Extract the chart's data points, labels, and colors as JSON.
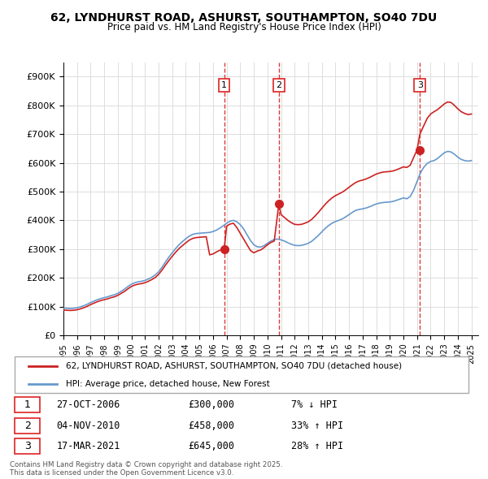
{
  "title": "62, LYNDHURST ROAD, ASHURST, SOUTHAMPTON, SO40 7DU",
  "subtitle": "Price paid vs. HM Land Registry's House Price Index (HPI)",
  "ylabel_ticks": [
    "£0",
    "£100K",
    "£200K",
    "£300K",
    "£400K",
    "£500K",
    "£600K",
    "£700K",
    "£800K",
    "£900K"
  ],
  "ytick_values": [
    0,
    100000,
    200000,
    300000,
    400000,
    500000,
    600000,
    700000,
    800000,
    900000
  ],
  "ylim": [
    0,
    950000
  ],
  "xlim_start": 1995.0,
  "xlim_end": 2025.5,
  "hpi_line_color": "#6699cc",
  "price_line_color": "#cc2222",
  "transaction_line_color": "#dd2222",
  "background_color": "#ffffff",
  "grid_color": "#dddddd",
  "transactions": [
    {
      "num": 1,
      "date": "27-OCT-2006",
      "price": 300000,
      "pct": "7%",
      "dir": "↓",
      "year": 2006.82
    },
    {
      "num": 2,
      "date": "04-NOV-2010",
      "price": 458000,
      "pct": "33%",
      "dir": "↑",
      "year": 2010.84
    },
    {
      "num": 3,
      "date": "17-MAR-2021",
      "price": 645000,
      "pct": "28%",
      "dir": "↑",
      "year": 2021.21
    }
  ],
  "legend_label_red": "62, LYNDHURST ROAD, ASHURST, SOUTHAMPTON, SO40 7DU (detached house)",
  "legend_label_blue": "HPI: Average price, detached house, New Forest",
  "footer": "Contains HM Land Registry data © Crown copyright and database right 2025.\nThis data is licensed under the Open Government Licence v3.0.",
  "hpi_data": {
    "years": [
      1995.0,
      1995.25,
      1995.5,
      1995.75,
      1996.0,
      1996.25,
      1996.5,
      1996.75,
      1997.0,
      1997.25,
      1997.5,
      1997.75,
      1998.0,
      1998.25,
      1998.5,
      1998.75,
      1999.0,
      1999.25,
      1999.5,
      1999.75,
      2000.0,
      2000.25,
      2000.5,
      2000.75,
      2001.0,
      2001.25,
      2001.5,
      2001.75,
      2002.0,
      2002.25,
      2002.5,
      2002.75,
      2003.0,
      2003.25,
      2003.5,
      2003.75,
      2004.0,
      2004.25,
      2004.5,
      2004.75,
      2005.0,
      2005.25,
      2005.5,
      2005.75,
      2006.0,
      2006.25,
      2006.5,
      2006.75,
      2007.0,
      2007.25,
      2007.5,
      2007.75,
      2008.0,
      2008.25,
      2008.5,
      2008.75,
      2009.0,
      2009.25,
      2009.5,
      2009.75,
      2010.0,
      2010.25,
      2010.5,
      2010.75,
      2011.0,
      2011.25,
      2011.5,
      2011.75,
      2012.0,
      2012.25,
      2012.5,
      2012.75,
      2013.0,
      2013.25,
      2013.5,
      2013.75,
      2014.0,
      2014.25,
      2014.5,
      2014.75,
      2015.0,
      2015.25,
      2015.5,
      2015.75,
      2016.0,
      2016.25,
      2016.5,
      2016.75,
      2017.0,
      2017.25,
      2017.5,
      2017.75,
      2018.0,
      2018.25,
      2018.5,
      2018.75,
      2019.0,
      2019.25,
      2019.5,
      2019.75,
      2020.0,
      2020.25,
      2020.5,
      2020.75,
      2021.0,
      2021.25,
      2021.5,
      2021.75,
      2022.0,
      2022.25,
      2022.5,
      2022.75,
      2023.0,
      2023.25,
      2023.5,
      2023.75,
      2024.0,
      2024.25,
      2024.5,
      2024.75,
      2025.0
    ],
    "values": [
      95000,
      94000,
      93500,
      94000,
      96000,
      99000,
      103000,
      108000,
      114000,
      119000,
      124000,
      128000,
      131000,
      134000,
      138000,
      141000,
      146000,
      153000,
      161000,
      170000,
      178000,
      183000,
      186000,
      188000,
      191000,
      196000,
      202000,
      210000,
      221000,
      237000,
      255000,
      272000,
      287000,
      302000,
      315000,
      326000,
      336000,
      345000,
      351000,
      354000,
      355000,
      356000,
      357000,
      358000,
      361000,
      366000,
      373000,
      381000,
      390000,
      397000,
      400000,
      395000,
      385000,
      370000,
      350000,
      330000,
      315000,
      308000,
      307000,
      312000,
      320000,
      328000,
      333000,
      335000,
      332000,
      328000,
      322000,
      317000,
      313000,
      312000,
      313000,
      316000,
      320000,
      327000,
      337000,
      348000,
      360000,
      372000,
      382000,
      390000,
      396000,
      400000,
      405000,
      412000,
      420000,
      428000,
      435000,
      438000,
      440000,
      443000,
      447000,
      452000,
      457000,
      460000,
      462000,
      463000,
      464000,
      466000,
      470000,
      474000,
      478000,
      475000,
      483000,
      505000,
      535000,
      565000,
      585000,
      598000,
      605000,
      608000,
      615000,
      625000,
      635000,
      640000,
      638000,
      630000,
      620000,
      612000,
      608000,
      606000,
      608000
    ]
  },
  "price_data": {
    "years": [
      1995.0,
      1995.25,
      1995.5,
      1995.75,
      1996.0,
      1996.25,
      1996.5,
      1996.75,
      1997.0,
      1997.25,
      1997.5,
      1997.75,
      1998.0,
      1998.25,
      1998.5,
      1998.75,
      1999.0,
      1999.25,
      1999.5,
      1999.75,
      2000.0,
      2000.25,
      2000.5,
      2000.75,
      2001.0,
      2001.25,
      2001.5,
      2001.75,
      2002.0,
      2002.25,
      2002.5,
      2002.75,
      2003.0,
      2003.25,
      2003.5,
      2003.75,
      2004.0,
      2004.25,
      2004.5,
      2004.75,
      2005.0,
      2005.25,
      2005.5,
      2005.75,
      2006.0,
      2006.25,
      2006.5,
      2006.82,
      2007.0,
      2007.25,
      2007.5,
      2007.75,
      2008.0,
      2008.25,
      2008.5,
      2008.75,
      2009.0,
      2009.25,
      2009.5,
      2009.75,
      2010.0,
      2010.25,
      2010.5,
      2010.84,
      2011.0,
      2011.25,
      2011.5,
      2011.75,
      2012.0,
      2012.25,
      2012.5,
      2012.75,
      2013.0,
      2013.25,
      2013.5,
      2013.75,
      2014.0,
      2014.25,
      2014.5,
      2014.75,
      2015.0,
      2015.25,
      2015.5,
      2015.75,
      2016.0,
      2016.25,
      2016.5,
      2016.75,
      2017.0,
      2017.25,
      2017.5,
      2017.75,
      2018.0,
      2018.25,
      2018.5,
      2018.75,
      2019.0,
      2019.25,
      2019.5,
      2019.75,
      2020.0,
      2020.25,
      2020.5,
      2020.75,
      2021.0,
      2021.21,
      2021.5,
      2021.75,
      2022.0,
      2022.25,
      2022.5,
      2022.75,
      2023.0,
      2023.25,
      2023.5,
      2023.75,
      2024.0,
      2024.25,
      2024.5,
      2024.75,
      2025.0
    ],
    "values": [
      88000,
      87000,
      86500,
      87000,
      89000,
      92000,
      96000,
      101000,
      107000,
      112000,
      117000,
      121000,
      124000,
      127000,
      131000,
      134000,
      139000,
      146000,
      153000,
      162000,
      170000,
      175000,
      178000,
      180000,
      183000,
      188000,
      194000,
      201000,
      212000,
      227000,
      244000,
      260000,
      275000,
      289000,
      302000,
      312000,
      322000,
      331000,
      337000,
      340000,
      341000,
      342000,
      343000,
      280000,
      283000,
      290000,
      296000,
      300000,
      380000,
      387000,
      390000,
      375000,
      355000,
      335000,
      315000,
      295000,
      287000,
      293000,
      297000,
      305000,
      315000,
      323000,
      328000,
      458000,
      420000,
      410000,
      400000,
      392000,
      386000,
      385000,
      386000,
      390000,
      395000,
      403000,
      415000,
      428000,
      442000,
      456000,
      468000,
      478000,
      486000,
      492000,
      498000,
      506000,
      515000,
      524000,
      532000,
      537000,
      540000,
      544000,
      549000,
      555000,
      561000,
      565000,
      568000,
      569000,
      570000,
      572000,
      576000,
      581000,
      586000,
      584000,
      592000,
      619000,
      645000,
      700000,
      730000,
      755000,
      770000,
      778000,
      785000,
      795000,
      805000,
      812000,
      810000,
      800000,
      788000,
      778000,
      772000,
      768000,
      770000
    ]
  }
}
